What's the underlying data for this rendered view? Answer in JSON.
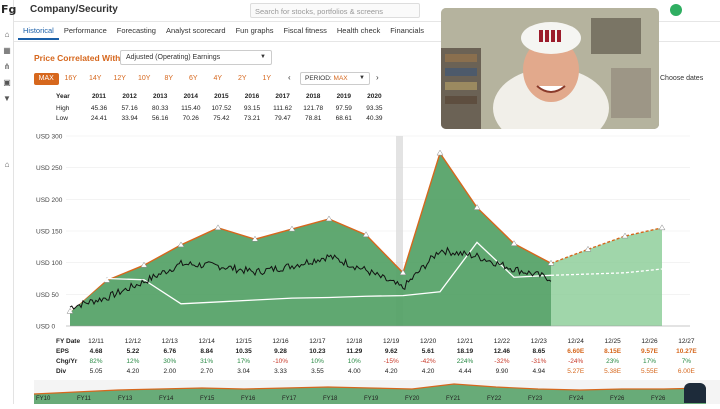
{
  "app": {
    "logo": "Fg",
    "page_title": "Company/Security",
    "search_placeholder": "Search for stocks, portfolios & screens"
  },
  "tabs": [
    "Historical",
    "Performance",
    "Forecasting",
    "Analyst scorecard",
    "Fun graphs",
    "Fiscal fitness",
    "Health check",
    "Financials"
  ],
  "controls": {
    "price_correlated_with": "Price Correlated With",
    "metric_select": "Adjusted (Operating) Earnings",
    "ranges": [
      "MAX",
      "16Y",
      "14Y",
      "12Y",
      "10Y",
      "8Y",
      "6Y",
      "4Y",
      "2Y",
      "1Y"
    ],
    "active_range": "MAX",
    "period_label": "PERIOD:",
    "period_value": "MAX",
    "choose_dates": "Choose dates"
  },
  "high_low": {
    "label_year": "Year",
    "label_high": "High",
    "label_low": "Low",
    "years": [
      "2011",
      "2012",
      "2013",
      "2014",
      "2015",
      "2016",
      "2017",
      "2018",
      "2019",
      "2020"
    ],
    "high": [
      "45.36",
      "57.16",
      "80.33",
      "115.40",
      "107.52",
      "93.15",
      "111.62",
      "121.78",
      "97.59",
      "93.35"
    ],
    "low": [
      "24.41",
      "33.94",
      "56.16",
      "70.26",
      "75.42",
      "73.21",
      "79.47",
      "78.81",
      "68.61",
      "40.39"
    ]
  },
  "chart_data": {
    "type": "area",
    "y_axis_labels": [
      "USD 300",
      "USD 250",
      "USD 200",
      "USD 150",
      "USD 100",
      "USD 50",
      "USD 0"
    ],
    "ylim": [
      0,
      300
    ],
    "x_axis_labels": [
      "12/11",
      "12/12",
      "12/13",
      "12/14",
      "12/15",
      "12/16",
      "12/17",
      "12/18",
      "12/19",
      "12/20",
      "12/21",
      "12/22",
      "12/23",
      "12/24",
      "12/25",
      "12/26",
      "12/27"
    ],
    "fair_value_line": [
      23,
      72,
      96,
      128,
      155,
      137,
      153,
      169,
      144,
      84,
      273,
      187,
      130,
      99,
      121,
      142,
      155
    ],
    "normal_pe_line": [
      23,
      75,
      73,
      35,
      38,
      41,
      44,
      45,
      47,
      48,
      54,
      132,
      77,
      80,
      82,
      84,
      90
    ],
    "price_series_approx": [
      30,
      45,
      70,
      98,
      95,
      85,
      95,
      110,
      88,
      60,
      120,
      110,
      90,
      75
    ]
  },
  "fy_table": {
    "labels": [
      "FY Date",
      "EPS",
      "Chg/Yr",
      "Div"
    ],
    "dates": [
      "12/11",
      "12/12",
      "12/13",
      "12/14",
      "12/15",
      "12/16",
      "12/17",
      "12/18",
      "12/19",
      "12/20",
      "12/21",
      "12/22",
      "12/23",
      "12/24",
      "12/25",
      "12/26",
      "12/27"
    ],
    "eps": [
      "4.68",
      "5.22",
      "6.76",
      "8.84",
      "10.35",
      "9.28",
      "10.23",
      "11.29",
      "9.62",
      "5.61",
      "18.19",
      "12.46",
      "8.65",
      "6.60E",
      "8.15E",
      "9.57E",
      "10.27E"
    ],
    "chg": [
      "82%",
      "12%",
      "30%",
      "31%",
      "17%",
      "-10%",
      "10%",
      "10%",
      "-15%",
      "-42%",
      "224%",
      "-32%",
      "-31%",
      "-24%",
      "23%",
      "17%",
      "7%"
    ],
    "div": [
      "5.05",
      "4.20",
      "2.00",
      "2.70",
      "3.04",
      "3.33",
      "3.55",
      "4.00",
      "4.20",
      "4.20",
      "4.44",
      "9.90",
      "4.94",
      "5.27E",
      "5.38E",
      "5.55E",
      "6.00E"
    ]
  },
  "mini_axis": [
    "FY10",
    "FY11",
    "FY13",
    "FY14",
    "FY15",
    "FY16",
    "FY17",
    "FY18",
    "FY19",
    "FY20",
    "FY21",
    "FY22",
    "FY23",
    "FY24",
    "FY26",
    "FY26"
  ],
  "colors": {
    "accent": "#d6671d",
    "fill": "#4f9e62",
    "link": "#1a5fa8",
    "estimate_fill": "#8fcf9b"
  }
}
